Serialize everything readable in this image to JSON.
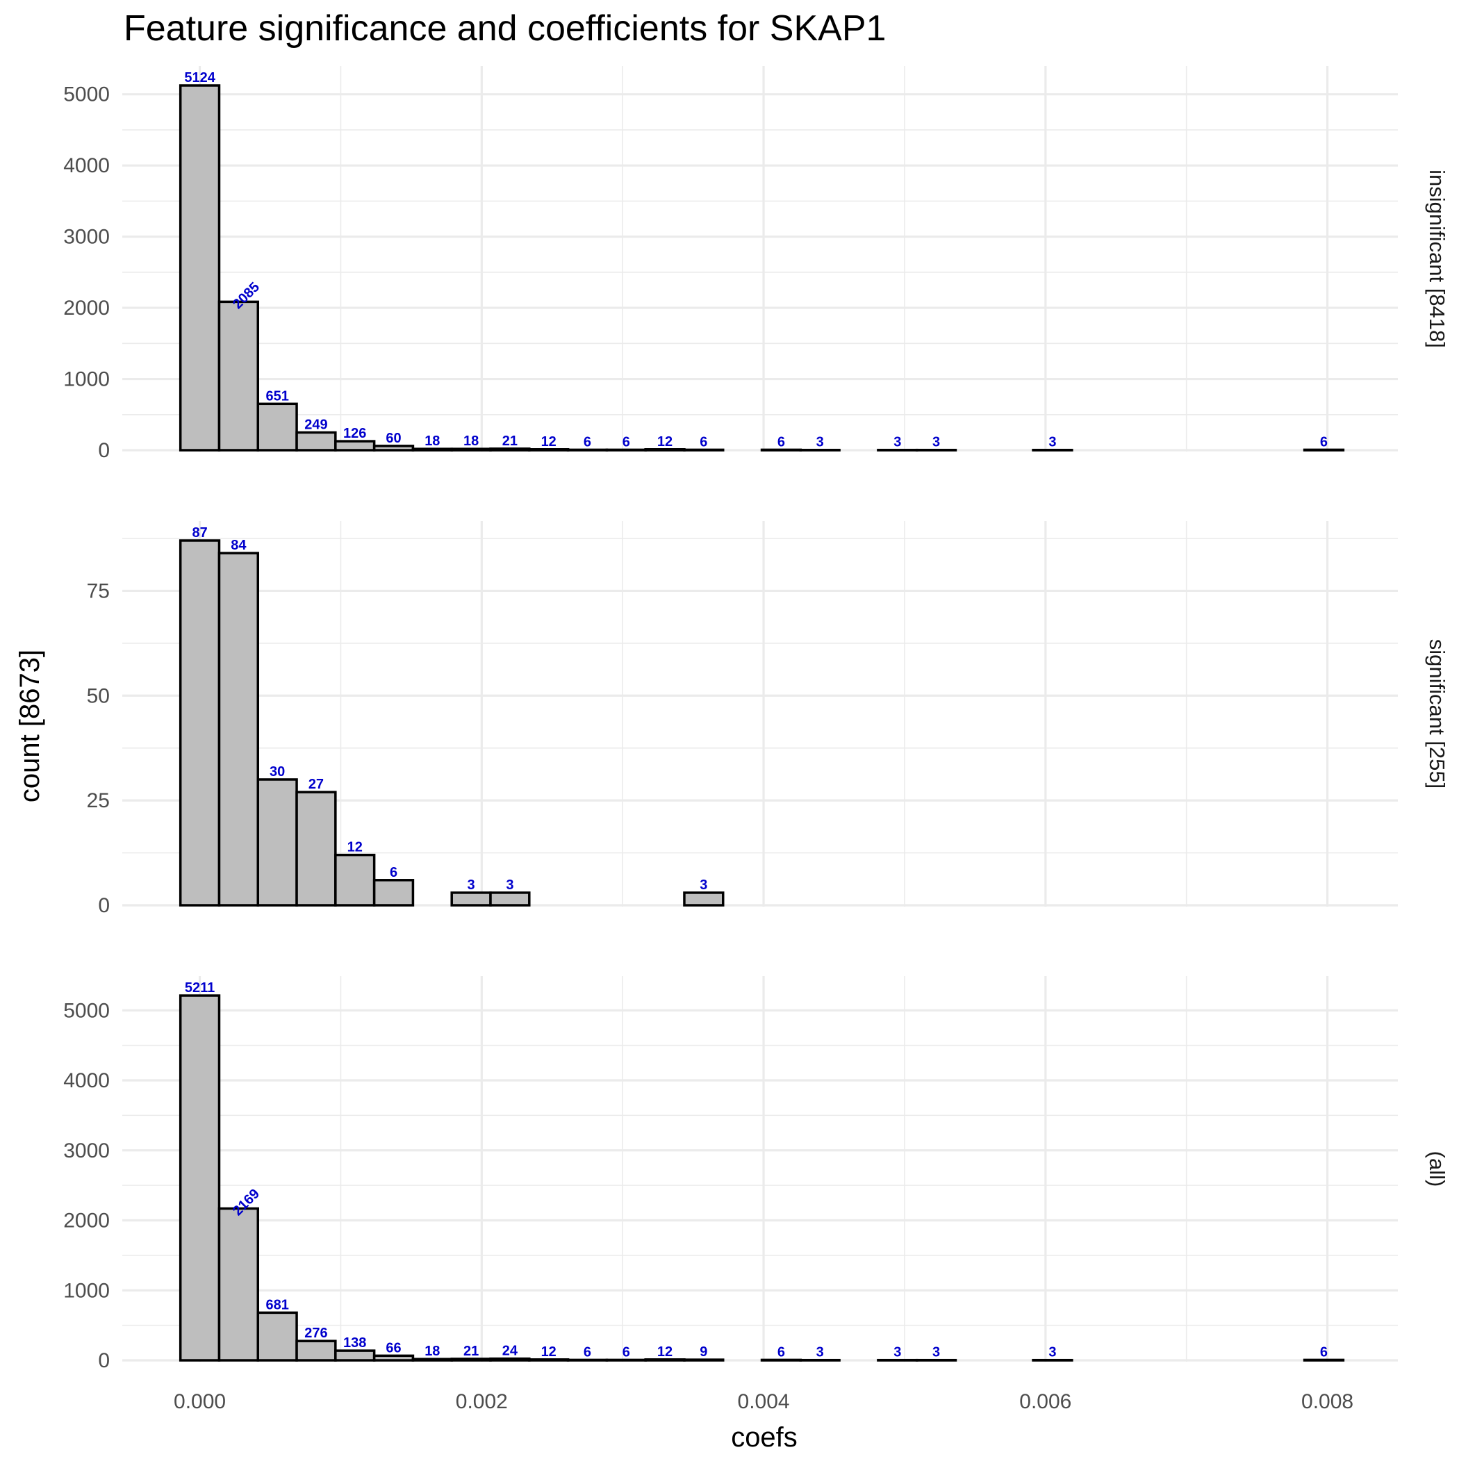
{
  "chart_data": {
    "type": "bar",
    "title": "Feature significance and coefficients for SKAP1",
    "xlabel": "coefs",
    "ylabel": "count [8673]",
    "bin_width": 0.000275,
    "first_bin_center": 0,
    "xlim": [
      -0.00055,
      0.0085
    ],
    "x_ticks": [
      0,
      0.002,
      0.004,
      0.006,
      0.008
    ],
    "x_tick_labels": [
      "0.000",
      "0.002",
      "0.004",
      "0.006",
      "0.008"
    ],
    "grid": true,
    "colors": {
      "bar_fill": "#bebebe",
      "bar_outline": "#000000",
      "count_label": "#0000cc"
    },
    "panels": [
      {
        "label": "insignificant [8418]",
        "ylim": [
          0,
          5124
        ],
        "y_ticks": [
          0,
          1000,
          2000,
          3000,
          4000,
          5000
        ],
        "y_tick_labels": [
          "0",
          "1000",
          "2000",
          "3000",
          "4000",
          "5000"
        ],
        "values": [
          5124,
          2085,
          651,
          249,
          126,
          60,
          18,
          18,
          21,
          12,
          6,
          6,
          12,
          6,
          0,
          6,
          3,
          0,
          3,
          3,
          0,
          0,
          3,
          0,
          0,
          0,
          0,
          0,
          0,
          6
        ],
        "bar_labels": [
          "5124",
          "2085",
          "651",
          "249",
          "126",
          "60",
          "18",
          "18",
          "21",
          "12",
          "6",
          "6",
          "12",
          "6",
          "",
          "6",
          "3",
          "",
          "3",
          "3",
          "",
          "",
          "3",
          "",
          "",
          "",
          "",
          "",
          "",
          "6"
        ]
      },
      {
        "label": "significant [255]",
        "ylim": [
          0,
          87
        ],
        "y_ticks": [
          0,
          25,
          50,
          75
        ],
        "y_tick_labels": [
          "0",
          "25",
          "50",
          "75"
        ],
        "values": [
          87,
          84,
          30,
          27,
          12,
          6,
          0,
          3,
          3,
          0,
          0,
          0,
          0,
          3,
          0,
          0,
          0,
          0,
          0,
          0,
          0,
          0,
          0,
          0,
          0,
          0,
          0,
          0,
          0,
          0
        ],
        "bar_labels": [
          "87",
          "84",
          "30",
          "27",
          "12",
          "6",
          "",
          "3",
          "3",
          "",
          "",
          "",
          "",
          "3",
          "",
          "",
          "",
          "",
          "",
          "",
          "",
          "",
          "",
          "",
          "",
          "",
          "",
          "",
          "",
          ""
        ]
      },
      {
        "label": "(all)",
        "ylim": [
          0,
          5211
        ],
        "y_ticks": [
          0,
          1000,
          2000,
          3000,
          4000,
          5000
        ],
        "y_tick_labels": [
          "0",
          "1000",
          "2000",
          "3000",
          "4000",
          "5000"
        ],
        "values": [
          5211,
          2169,
          681,
          276,
          138,
          66,
          18,
          21,
          24,
          12,
          6,
          6,
          12,
          9,
          0,
          6,
          3,
          0,
          3,
          3,
          0,
          0,
          3,
          0,
          0,
          0,
          0,
          0,
          0,
          6
        ],
        "bar_labels": [
          "5211",
          "2169",
          "681",
          "276",
          "138",
          "66",
          "18",
          "21",
          "24",
          "12",
          "6",
          "6",
          "12",
          "9",
          "",
          "6",
          "3",
          "",
          "3",
          "3",
          "",
          "",
          "3",
          "",
          "",
          "",
          "",
          "",
          "",
          "6"
        ]
      }
    ]
  }
}
